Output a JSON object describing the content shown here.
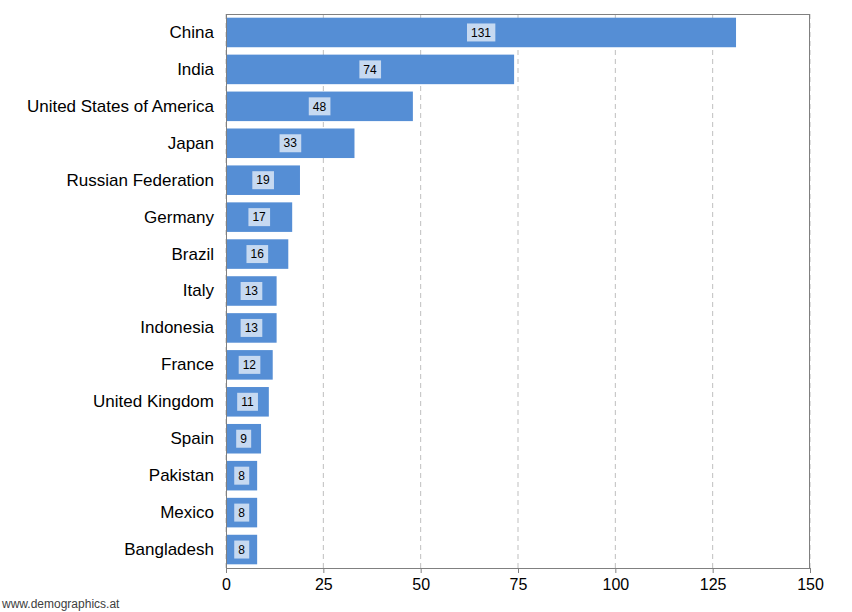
{
  "chart_data": {
    "type": "bar",
    "orientation": "horizontal",
    "categories": [
      "China",
      "India",
      "United States of America",
      "Japan",
      "Russian Federation",
      "Germany",
      "Brazil",
      "Italy",
      "Indonesia",
      "France",
      "United Kingdom",
      "Spain",
      "Pakistan",
      "Mexico",
      "Bangladesh"
    ],
    "values": [
      131,
      74,
      48,
      33,
      19,
      17,
      16,
      13,
      13,
      12,
      11,
      9,
      8,
      8,
      8
    ],
    "color": "#558ed5",
    "xlim": [
      0,
      150
    ],
    "xticks": [
      0,
      25,
      50,
      75,
      100,
      125,
      150
    ],
    "grid": true,
    "data_labels": true,
    "annotations": [
      "www.demographics.at"
    ]
  }
}
